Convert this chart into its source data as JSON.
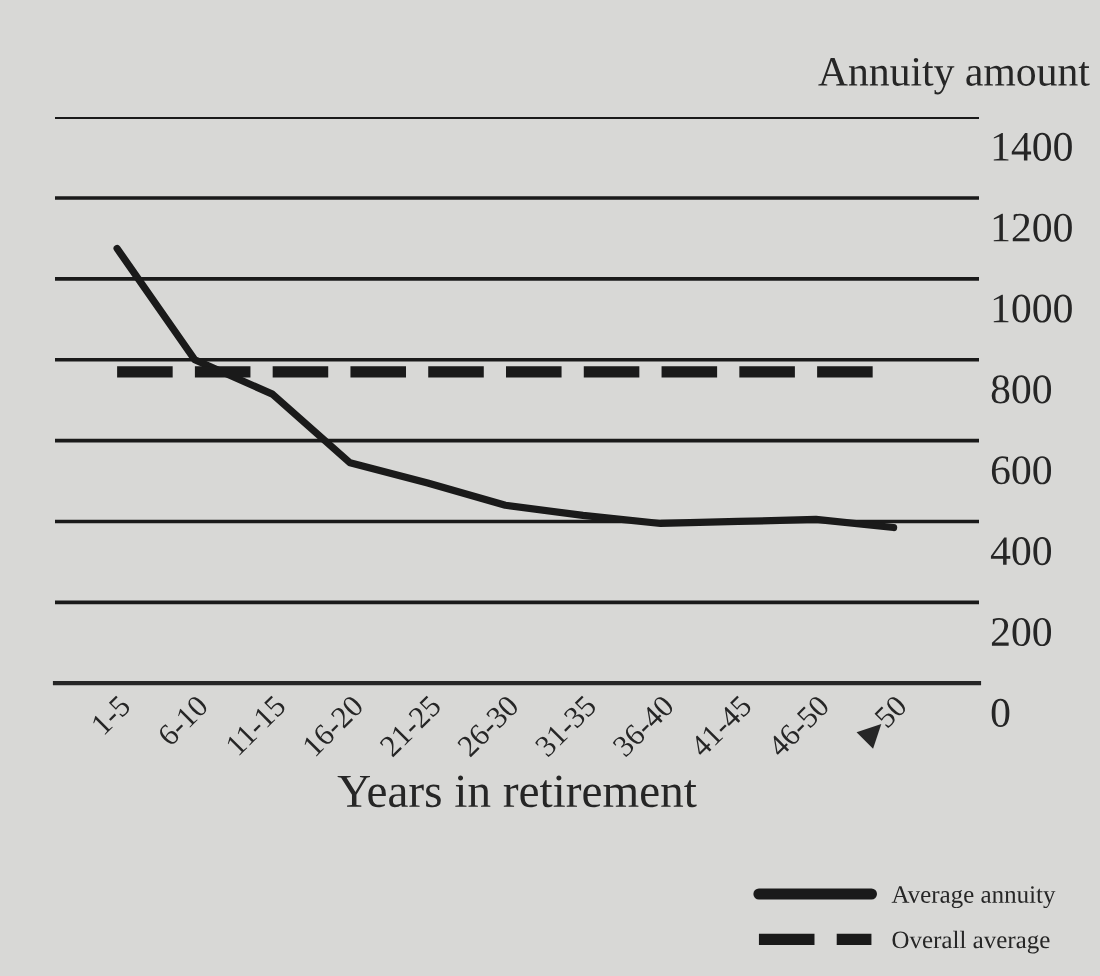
{
  "chart_data": {
    "type": "line",
    "xlabel": "Years in retirement",
    "ylabel": "Annuity amount",
    "categories": [
      "1-5",
      "6-10",
      "11-15",
      "16-20",
      "21-25",
      "26-30",
      "31-35",
      "36-40",
      "41-45",
      "46-50",
      "▶50"
    ],
    "series": [
      {
        "name": "Average annuity",
        "color": "#1a1a1a",
        "values": [
          1075,
          800,
          715,
          545,
          495,
          440,
          415,
          395,
          400,
          405,
          385
        ]
      }
    ],
    "ref_lines": [
      {
        "axis": "y",
        "value": 770,
        "label": "Overall average",
        "color": "#1a1a1a",
        "line_style": "dashed"
      }
    ],
    "ylim": [
      0,
      1400
    ],
    "yticks": [
      0,
      200,
      400,
      600,
      800,
      1000,
      1200,
      1400
    ],
    "grid": "y",
    "legend": "bottom right",
    "marker": "none",
    "line_style": "solid"
  }
}
